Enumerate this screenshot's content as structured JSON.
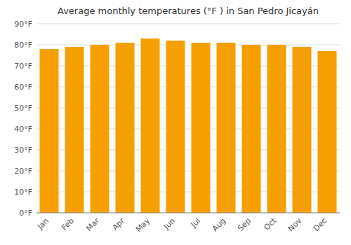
{
  "chart_data": {
    "type": "bar",
    "title": "Average monthly temperatures (°F ) in San Pedro Jicayán",
    "categories": [
      "Jan",
      "Feb",
      "Mar",
      "Apr",
      "May",
      "Jun",
      "Jul",
      "Aug",
      "Sep",
      "Oct",
      "Nov",
      "Dec"
    ],
    "values": [
      78,
      79,
      80,
      81,
      83,
      82,
      81,
      81,
      80,
      80,
      79,
      77
    ],
    "color": "#F5A000",
    "ylim": [
      0,
      90
    ],
    "yticks": [
      {
        "value": 0,
        "label": "0°F"
      },
      {
        "value": 10,
        "label": "10°F"
      },
      {
        "value": 20,
        "label": "20°F"
      },
      {
        "value": 30,
        "label": "30°F"
      },
      {
        "value": 40,
        "label": "40°F"
      },
      {
        "value": 50,
        "label": "50°F"
      },
      {
        "value": 60,
        "label": "60°F"
      },
      {
        "value": 70,
        "label": "70°F"
      },
      {
        "value": 80,
        "label": "80°F"
      },
      {
        "value": 90,
        "label": "90°F"
      }
    ],
    "grid": true
  }
}
